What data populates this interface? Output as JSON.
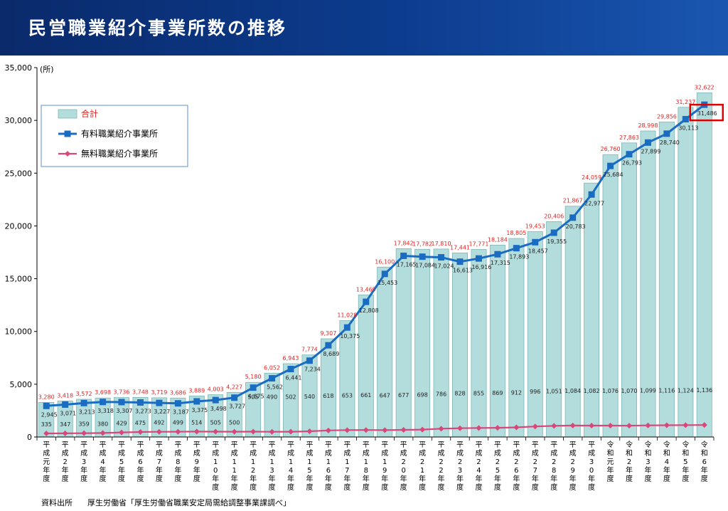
{
  "header": {
    "title": "民営職業紹介事業所数の推移"
  },
  "source": {
    "label": "資料出所",
    "text": "厚生労働省「厚生労働省職業安定局需給調整事業課調べ」"
  },
  "colors": {
    "bar_fill": "#b3dcdc",
    "bar_stroke": "#7fb7b7",
    "paid_line": "#1a6cc2",
    "free_line": "#d9467a",
    "total_label": "#e02424",
    "highlight_box": "#e00000"
  },
  "chart_data": {
    "type": "bar",
    "title": "民営職業紹介事業所数の推移",
    "ylabel": "(所)",
    "ylim": [
      0,
      35000
    ],
    "yticks": [
      0,
      5000,
      10000,
      15000,
      20000,
      25000,
      30000,
      35000
    ],
    "ytick_labels": [
      "0",
      "5,000",
      "10,000",
      "15,000",
      "20,000",
      "25,000",
      "30,000",
      "35,000"
    ],
    "legend_position": "top-left",
    "categories": [
      "平成元年度",
      "平成2年度",
      "平成3年度",
      "平成4年度",
      "平成5年度",
      "平成6年度",
      "平成7年度",
      "平成8年度",
      "平成9年度",
      "平成10年度",
      "平成11年度",
      "平成12年度",
      "平成13年度",
      "平成14年度",
      "平成15年度",
      "平成16年度",
      "平成17年度",
      "平成18年度",
      "平成19年度",
      "平成20年度",
      "平成21年度",
      "平成22年度",
      "平成23年度",
      "平成24年度",
      "平成25年度",
      "平成26年度",
      "平成27年度",
      "平成28年度",
      "平成29年度",
      "平成30年度",
      "令和元年度",
      "令和2年度",
      "令和3年度",
      "令和4年度",
      "令和5年度",
      "令和6年度"
    ],
    "category_labels": [
      "平成元年度",
      "平成2年度",
      "平成3年度",
      "平成4年度",
      "平成5年度",
      "平成6年度",
      "平成7年度",
      "平成8年度",
      "平成9年度",
      "平成10年度",
      "平成11年度",
      "平成12年度",
      "平成13年度",
      "平成14年度",
      "平成15年度",
      "平成16年度",
      "平成17年度",
      "平成18年度",
      "平成19年度",
      "平成20年度",
      "平成21年度",
      "平成22年度",
      "平成23年度",
      "平成24年度",
      "平成25年度",
      "平成26年度",
      "平成27年度",
      "平成28年度",
      "平成29年度",
      "平成30年度",
      "令和元年度",
      "令和2年度",
      "令和3年度",
      "令和4年度",
      "令和5年度",
      "令和6年度"
    ],
    "series": [
      {
        "name": "合計",
        "kind": "bar",
        "values": [
          3280,
          3418,
          3572,
          3698,
          3736,
          3748,
          3719,
          3686,
          3889,
          4003,
          4227,
          5180,
          6052,
          6943,
          7774,
          9307,
          11028,
          13469,
          16100,
          17842,
          17782,
          17810,
          17441,
          17771,
          18184,
          18805,
          19453,
          20406,
          21867,
          24059,
          26760,
          27863,
          28998,
          29856,
          31237,
          32622
        ],
        "labels": [
          "3,280",
          "3,418",
          "3,572",
          "3,698",
          "3,736",
          "3,748",
          "3,719",
          "3,686",
          "3,889",
          "4,003",
          "4,227",
          "5,180",
          "6,052",
          "6,943",
          "7,774",
          "9,307",
          "11,028",
          "13,469",
          "16,100",
          "17,842",
          "17,782",
          "17,810",
          "17,441",
          "17,771",
          "18,184",
          "18,805",
          "19,453",
          "20,406",
          "21,867",
          "24,059",
          "26,760",
          "27,863",
          "28,998",
          "29,856",
          "31,237",
          "32,622"
        ]
      },
      {
        "name": "有料職業紹介事業所",
        "kind": "line",
        "values": [
          2945,
          3071,
          3213,
          3318,
          3307,
          3273,
          3227,
          3187,
          3375,
          3498,
          3727,
          4675,
          5562,
          6441,
          7234,
          8689,
          10375,
          12808,
          15453,
          17165,
          17084,
          17024,
          16613,
          16916,
          17315,
          17893,
          18457,
          19355,
          20783,
          22977,
          25684,
          26793,
          27899,
          28740,
          30113,
          31486
        ],
        "labels": [
          "2,945",
          "3,071",
          "3,213",
          "3,318",
          "3,307",
          "3,273",
          "3,227",
          "3,187",
          "3,375",
          "3,498",
          "3,727",
          "4,675",
          "5,562",
          "6,441",
          "7,234",
          "8,689",
          "10,375",
          "12,808",
          "15,453",
          "17,165",
          "17,084",
          "17,024",
          "16,613",
          "16,916",
          "17,315",
          "17,893",
          "18,457",
          "19,355",
          "20,783",
          "22,977",
          "25,684",
          "26,793",
          "27,899",
          "28,740",
          "30,113",
          "31,486"
        ]
      },
      {
        "name": "無料職業紹介事業所",
        "kind": "line",
        "values": [
          335,
          347,
          359,
          380,
          429,
          475,
          492,
          499,
          514,
          505,
          500,
          505,
          490,
          502,
          540,
          618,
          653,
          661,
          647,
          677,
          698,
          786,
          828,
          855,
          869,
          912,
          996,
          1051,
          1084,
          1082,
          1076,
          1070,
          1099,
          1116,
          1124,
          1136
        ],
        "labels": [
          "335",
          "347",
          "359",
          "380",
          "429",
          "475",
          "492",
          "499",
          "514",
          "505",
          "500",
          "505",
          "490",
          "502",
          "540",
          "618",
          "653",
          "661",
          "647",
          "677",
          "698",
          "786",
          "828",
          "855",
          "869",
          "912",
          "996",
          "1,051",
          "1,084",
          "1,082",
          "1,076",
          "1,070",
          "1,099",
          "1,116",
          "1,124",
          "1,136"
        ]
      }
    ],
    "highlight": {
      "series": "有料職業紹介事業所",
      "category": "令和6年度"
    }
  }
}
